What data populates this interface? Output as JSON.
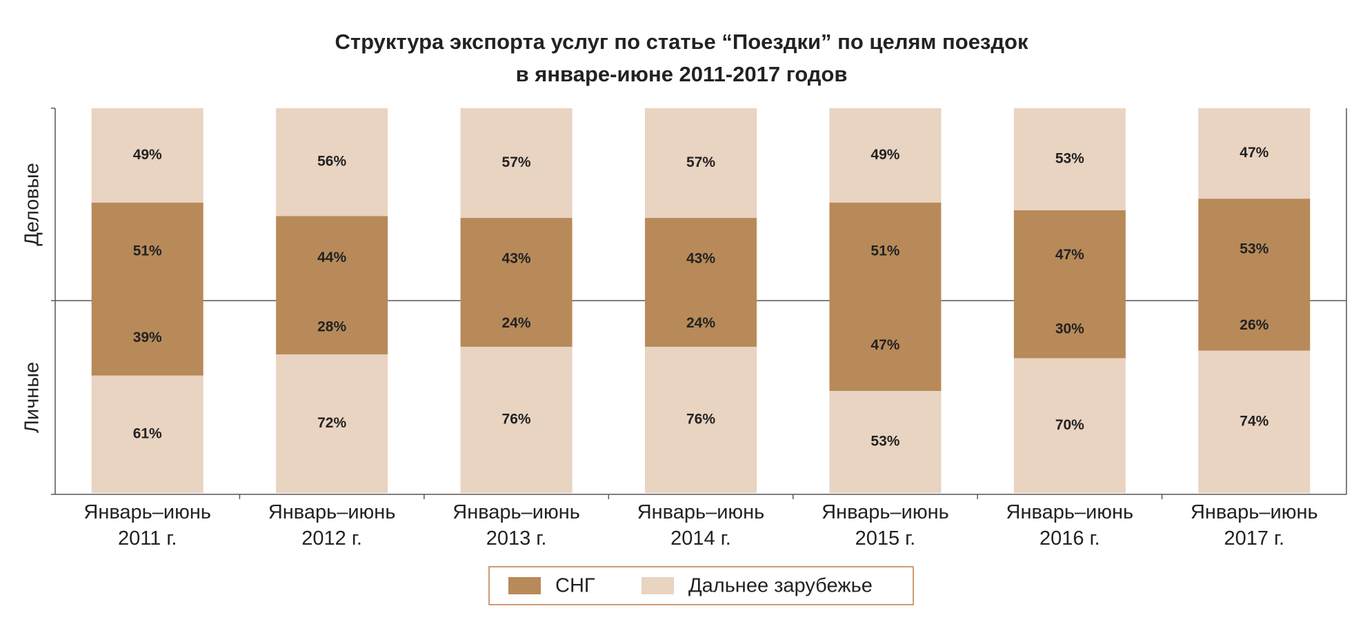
{
  "chart_data": {
    "type": "bar",
    "title": "Структура экспорта услуг по статье “Поездки” по целям поездок",
    "subtitle": "в январе-июне 2011-2017 годов",
    "categories": [
      "Январь–июнь 2011 г.",
      "Январь–июнь 2012 г.",
      "Январь–июнь 2013 г.",
      "Январь–июнь 2014 г.",
      "Январь–июнь 2015 г.",
      "Январь–июнь 2016 г.",
      "Январь–июнь 2017 г."
    ],
    "panel_labels": [
      "Деловые",
      "Личные"
    ],
    "ylim": [
      0,
      100
    ],
    "series": [
      {
        "name": "СНГ",
        "color": "#b88a59",
        "values": [
          [
            51,
            44,
            43,
            43,
            51,
            47,
            53
          ],
          [
            39,
            28,
            24,
            24,
            47,
            30,
            26
          ]
        ],
        "value_labels": [
          [
            "51%",
            "44%",
            "43%",
            "43%",
            "51%",
            "47%",
            "53%"
          ],
          [
            "39%",
            "28%",
            "24%",
            "24%",
            "47%",
            "30%",
            "26%"
          ]
        ]
      },
      {
        "name": "Дальнее зарубежье",
        "color": "#e9d3c1",
        "values": [
          [
            49,
            56,
            57,
            57,
            49,
            53,
            47
          ],
          [
            61,
            72,
            76,
            76,
            53,
            70,
            74
          ]
        ],
        "value_labels": [
          [
            "49%",
            "56%",
            "57%",
            "57%",
            "49%",
            "53%",
            "47%"
          ],
          [
            "61%",
            "72%",
            "76%",
            "76%",
            "53%",
            "70%",
            "74%"
          ]
        ]
      }
    ]
  }
}
